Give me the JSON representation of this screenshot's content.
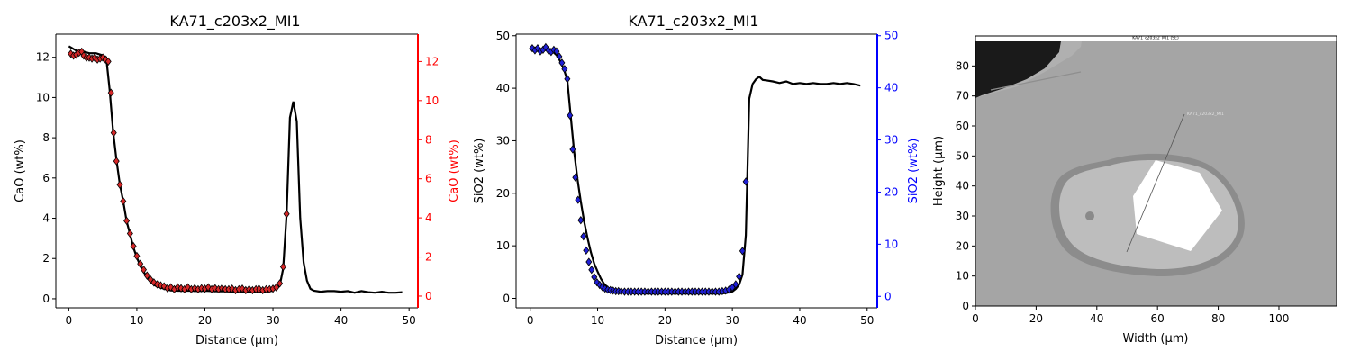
{
  "chart_data": [
    {
      "type": "line",
      "title": "KA71_c203x2_MI1",
      "xlabel": "Distance (µm)",
      "ylabel": "CaO (wt%)",
      "y2label": "CaO (wt%)",
      "xlim": [
        -1.9,
        51.3
      ],
      "ylim": [
        -0.45,
        13.15
      ],
      "y2lim": [
        -0.6,
        13.4
      ],
      "xticks": [
        0,
        10,
        20,
        30,
        40,
        50
      ],
      "yticks": [
        0,
        2,
        4,
        6,
        8,
        10,
        12
      ],
      "y2ticks": [
        0,
        2,
        4,
        6,
        8,
        10,
        12
      ],
      "colors": {
        "line": "#000000",
        "markers": "#d62728",
        "right_axis": "#ff0000"
      },
      "grid": false,
      "series": [
        {
          "role": "profile line",
          "x": [
            0,
            0.5,
            1,
            1.5,
            2,
            2.5,
            3,
            3.5,
            4,
            4.5,
            5,
            5.5,
            6,
            6.5,
            7,
            7.5,
            8,
            8.5,
            9,
            9.5,
            10,
            10.5,
            11,
            11.5,
            12,
            12.5,
            13,
            13.5,
            14,
            15,
            16,
            17,
            18,
            19,
            20,
            21,
            22,
            23,
            24,
            25,
            26,
            27,
            28,
            29,
            30,
            31,
            31.5,
            32,
            32.5,
            33,
            33.5,
            34,
            34.5,
            35,
            35.5,
            36,
            37,
            38,
            39,
            40,
            41,
            42,
            43,
            44,
            45,
            46,
            47,
            48,
            49
          ],
          "y": [
            12.55,
            12.45,
            12.35,
            12.3,
            12.3,
            12.25,
            12.2,
            12.2,
            12.2,
            12.15,
            12.1,
            12.0,
            10.4,
            8.35,
            6.9,
            5.7,
            4.85,
            3.85,
            3.2,
            2.55,
            2.05,
            1.65,
            1.35,
            1.05,
            0.85,
            0.7,
            0.6,
            0.55,
            0.5,
            0.42,
            0.4,
            0.4,
            0.4,
            0.38,
            0.4,
            0.38,
            0.37,
            0.37,
            0.35,
            0.35,
            0.33,
            0.33,
            0.35,
            0.35,
            0.4,
            0.65,
            1.5,
            4.2,
            9.0,
            9.8,
            8.8,
            4.0,
            1.8,
            0.9,
            0.5,
            0.4,
            0.35,
            0.38,
            0.38,
            0.35,
            0.38,
            0.3,
            0.38,
            0.33,
            0.3,
            0.35,
            0.3,
            0.3,
            0.33
          ]
        },
        {
          "role": "markers",
          "x": [
            0.3,
            0.7,
            1.1,
            1.5,
            1.9,
            2.2,
            2.6,
            3.0,
            3.4,
            3.8,
            4.2,
            4.6,
            5.0,
            5.4,
            5.8,
            6.2,
            6.6,
            7.0,
            7.5,
            8.0,
            8.5,
            9.0,
            9.5,
            10.0,
            10.5,
            11.0,
            11.5,
            12.0,
            12.5,
            13.0,
            13.5,
            14.0,
            14.5,
            15.0,
            15.5,
            16.0,
            16.5,
            17.0,
            17.5,
            18.0,
            18.5,
            19.0,
            19.5,
            20.0,
            20.5,
            21.0,
            21.5,
            22.0,
            22.5,
            23.0,
            23.5,
            24.0,
            24.5,
            25.0,
            25.5,
            26.0,
            26.5,
            27.0,
            27.5,
            28.0,
            28.5,
            29.0,
            29.5,
            30.0,
            30.5,
            31.0,
            31.5,
            32.0
          ],
          "y": [
            12.4,
            12.3,
            12.35,
            12.45,
            12.5,
            12.3,
            12.2,
            12.2,
            12.15,
            12.2,
            12.1,
            12.15,
            12.2,
            12.1,
            12.0,
            10.4,
            8.35,
            6.9,
            5.7,
            4.85,
            3.85,
            3.2,
            2.55,
            2.05,
            1.65,
            1.35,
            1.05,
            0.85,
            0.7,
            0.6,
            0.55,
            0.5,
            0.4,
            0.45,
            0.35,
            0.45,
            0.4,
            0.35,
            0.45,
            0.35,
            0.4,
            0.35,
            0.4,
            0.38,
            0.45,
            0.35,
            0.4,
            0.35,
            0.4,
            0.35,
            0.35,
            0.38,
            0.3,
            0.35,
            0.38,
            0.3,
            0.35,
            0.3,
            0.35,
            0.35,
            0.3,
            0.35,
            0.35,
            0.38,
            0.45,
            0.65,
            1.5,
            4.2
          ]
        }
      ]
    },
    {
      "type": "line",
      "title": "KA71_c203x2_MI1",
      "xlabel": "Distance (µm)",
      "ylabel": "SiO2 (wt%)",
      "y2label": "SiO2 (wt%)",
      "xlim": [
        -2.1,
        51.5
      ],
      "ylim": [
        -1.8,
        50.3
      ],
      "y2lim": [
        -2.2,
        50.3
      ],
      "xticks": [
        0,
        10,
        20,
        30,
        40,
        50
      ],
      "yticks": [
        0,
        10,
        20,
        30,
        40,
        50
      ],
      "y2ticks": [
        0,
        10,
        20,
        30,
        40,
        50
      ],
      "colors": {
        "line": "#000000",
        "markers": "#1f1fd6",
        "right_axis": "#0000ff"
      },
      "grid": false,
      "series": [
        {
          "role": "profile line",
          "x": [
            0,
            0.5,
            1,
            1.5,
            2,
            2.5,
            3,
            3.5,
            4,
            4.5,
            5,
            5.5,
            6,
            6.5,
            7,
            7.5,
            8,
            8.5,
            9,
            9.5,
            10,
            10.5,
            11,
            11.5,
            12,
            13,
            14,
            15,
            16,
            18,
            20,
            22,
            24,
            26,
            28,
            29,
            30,
            30.5,
            31,
            31.5,
            32,
            32.5,
            33,
            33.5,
            34,
            34.5,
            35,
            36,
            37,
            38,
            39,
            40,
            41,
            42,
            43,
            44,
            45,
            46,
            47,
            48,
            49
          ],
          "y": [
            47.8,
            47.6,
            47.4,
            47.3,
            47.4,
            47.2,
            47.0,
            46.8,
            46.2,
            45.0,
            43.6,
            41.5,
            34.8,
            28.2,
            22.8,
            18.5,
            14.6,
            11.5,
            8.8,
            6.6,
            5.1,
            3.7,
            2.7,
            2.1,
            1.6,
            1.3,
            1.1,
            1.0,
            0.95,
            0.9,
            0.9,
            0.9,
            0.9,
            0.9,
            0.9,
            1.0,
            1.3,
            1.8,
            2.6,
            4.5,
            12.0,
            38.0,
            40.8,
            41.7,
            42.2,
            41.6,
            41.5,
            41.3,
            41.0,
            41.3,
            40.8,
            41.0,
            40.8,
            41.0,
            40.8,
            40.8,
            41.0,
            40.8,
            41.0,
            40.8,
            40.5
          ]
        },
        {
          "role": "markers",
          "x": [
            0.3,
            0.7,
            1.1,
            1.5,
            1.9,
            2.3,
            2.7,
            3.1,
            3.5,
            3.9,
            4.3,
            4.7,
            5.1,
            5.5,
            5.9,
            6.3,
            6.7,
            7.1,
            7.5,
            7.9,
            8.3,
            8.7,
            9.1,
            9.5,
            9.9,
            10.3,
            10.7,
            11.1,
            11.5,
            11.9,
            12.3,
            12.7,
            13.1,
            13.5,
            14.0,
            14.5,
            15.0,
            15.5,
            16.0,
            16.5,
            17.0,
            17.5,
            18.0,
            18.5,
            19.0,
            19.5,
            20.0,
            20.5,
            21.0,
            21.5,
            22.0,
            22.5,
            23.0,
            23.5,
            24.0,
            24.5,
            25.0,
            25.5,
            26.0,
            26.5,
            27.0,
            27.5,
            28.0,
            28.5,
            29.0,
            29.5,
            30.0,
            30.5,
            31.0,
            31.5,
            32.0
          ],
          "y": [
            47.6,
            47.2,
            47.6,
            47.0,
            47.3,
            47.8,
            47.2,
            46.9,
            47.3,
            47.0,
            46.0,
            44.8,
            43.6,
            41.7,
            34.7,
            28.2,
            22.8,
            18.5,
            14.6,
            11.5,
            8.8,
            6.6,
            5.1,
            3.7,
            2.7,
            2.2,
            1.8,
            1.5,
            1.3,
            1.2,
            1.1,
            1.0,
            1.0,
            0.95,
            0.9,
            0.9,
            0.9,
            0.9,
            0.9,
            0.9,
            0.9,
            0.9,
            0.9,
            0.9,
            0.9,
            0.9,
            0.9,
            0.9,
            0.9,
            0.9,
            0.9,
            0.9,
            0.9,
            0.9,
            0.9,
            0.9,
            0.9,
            0.9,
            0.9,
            0.9,
            0.9,
            0.9,
            0.9,
            1.0,
            1.1,
            1.3,
            1.7,
            2.3,
            3.8,
            8.7,
            22.0
          ]
        }
      ]
    },
    {
      "type": "image",
      "xlabel": "Width (µm)",
      "ylabel": "Height (µm)",
      "xlim": [
        0,
        119
      ],
      "ylim": [
        0,
        90
      ],
      "xticks": [
        0,
        20,
        40,
        60,
        80,
        100
      ],
      "yticks": [
        0,
        10,
        20,
        30,
        40,
        50,
        60,
        70,
        80
      ],
      "image_caption": "KA71_c203x2_MI1 (SE)",
      "image_annotation": "KA71_c203x2_MI1"
    }
  ]
}
